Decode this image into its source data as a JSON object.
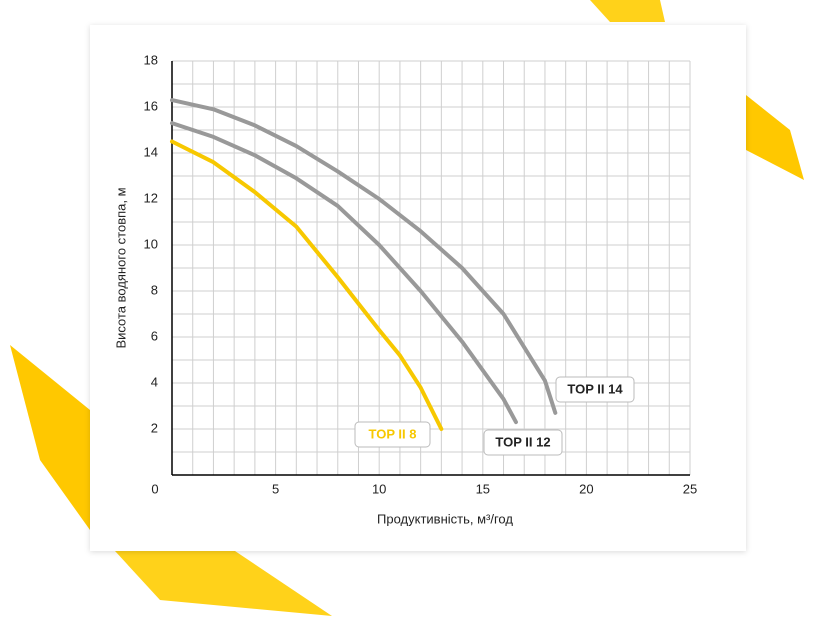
{
  "chart_data": {
    "type": "line",
    "x_label": "Продуктивність, м³/год",
    "y_label": "Висота водяного стовпа, м",
    "xlim": [
      0,
      25
    ],
    "xticks": [
      0,
      5,
      10,
      15,
      20,
      25
    ],
    "ylim": [
      0,
      18
    ],
    "yticks": [
      2,
      4,
      6,
      8,
      10,
      12,
      14,
      16,
      18
    ],
    "grid": true,
    "series": [
      {
        "name": "TOP II 8",
        "color": "#f7c800",
        "x": [
          0,
          2,
          4,
          6,
          8,
          10,
          11,
          12,
          13
        ],
        "values": [
          14.5,
          13.6,
          12.3,
          10.8,
          8.6,
          6.3,
          5.2,
          3.8,
          2.0
        ]
      },
      {
        "name": "TOP II 12",
        "color": "#999999",
        "x": [
          0,
          2,
          4,
          6,
          8,
          10,
          12,
          14,
          16,
          16.6
        ],
        "values": [
          15.3,
          14.7,
          13.9,
          12.9,
          11.7,
          10.0,
          8.0,
          5.8,
          3.3,
          2.3
        ]
      },
      {
        "name": "TOP II 14",
        "color": "#999999",
        "x": [
          0,
          2,
          4,
          6,
          8,
          10,
          12,
          14,
          16,
          18,
          18.5
        ],
        "values": [
          16.3,
          15.9,
          15.2,
          14.3,
          13.2,
          12.0,
          10.6,
          9.0,
          7.0,
          4.1,
          2.7
        ]
      }
    ]
  }
}
